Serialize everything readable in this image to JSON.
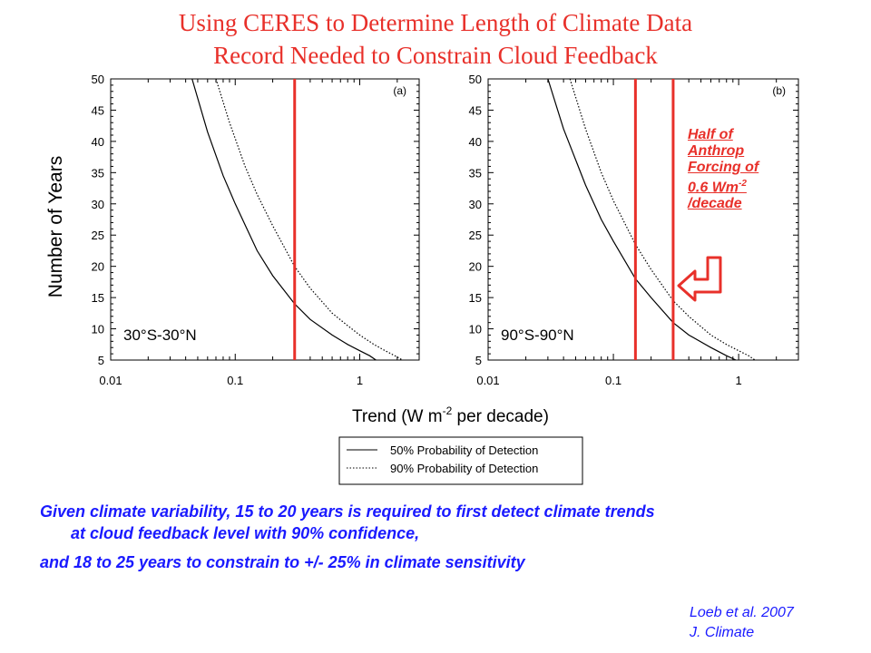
{
  "title": {
    "line1": "Using CERES to Determine Length of Climate Data",
    "line2": "Record Needed to Constrain Cloud Feedback"
  },
  "annotation": {
    "l1": "Half of",
    "l2": "Anthrop",
    "l3": "Forcing of",
    "l4a": "0.6 Wm",
    "l4sup": "-2",
    "l5": "/decade",
    "color": "#e8302a"
  },
  "summary": {
    "line1": "Given climate variability, 15 to 20 years is required to first detect climate trends",
    "line2": "at cloud feedback level with 90% confidence,",
    "line3": "and 18 to 25 years to constrain to +/- 25% in climate sensitivity",
    "color": "#1a1aff"
  },
  "citation": {
    "line1": "Loeb et al. 2007",
    "line2": "J. Climate"
  },
  "chart_data": {
    "type": "line",
    "ylabel": "Number of Years",
    "xlabel_main": "Trend (W m",
    "xlabel_sup": "-2",
    "xlabel_tail": " per decade)",
    "x_scale": "log",
    "xlim": [
      0.01,
      3
    ],
    "ylim": [
      5,
      50
    ],
    "x_ticks": [
      0.01,
      0.1,
      1
    ],
    "x_tick_labels": [
      "0.01",
      "0.1",
      "1"
    ],
    "y_ticks": [
      5,
      10,
      15,
      20,
      25,
      30,
      35,
      40,
      45,
      50
    ],
    "legend": {
      "placement": "bottom-center",
      "entries": [
        {
          "label": "50% Probability of Detection",
          "style": "solid"
        },
        {
          "label": "90% Probability of Detection",
          "style": "dotted"
        }
      ]
    },
    "panels": [
      {
        "id": "a",
        "panel_label": "(a)",
        "region_label": "30°S-30°N",
        "series": [
          {
            "name": "50% Probability of Detection",
            "style": "solid",
            "x": [
              0.045,
              0.06,
              0.08,
              0.1,
              0.15,
              0.2,
              0.3,
              0.4,
              0.6,
              0.8,
              1.0,
              1.2,
              1.35
            ],
            "y": [
              50,
              41.5,
              34.5,
              30,
              22.5,
              18.5,
              14,
              11.5,
              9,
              7.5,
              6.5,
              5.7,
              5
            ]
          },
          {
            "name": "90% Probability of Detection",
            "style": "dotted",
            "x": [
              0.07,
              0.09,
              0.12,
              0.15,
              0.2,
              0.3,
              0.4,
              0.6,
              0.8,
              1.0,
              1.3,
              1.6,
              2.0,
              2.2
            ],
            "y": [
              50,
              43,
              36,
              31.5,
              26.5,
              20,
              16.5,
              12.5,
              10.5,
              9,
              7.5,
              6.5,
              5.5,
              5
            ]
          }
        ],
        "vlines": [
          {
            "x": 0.3,
            "color": "#e8302a"
          }
        ]
      },
      {
        "id": "b",
        "panel_label": "(b)",
        "region_label": "90°S-90°N",
        "series": [
          {
            "name": "50% Probability of Detection",
            "style": "solid",
            "x": [
              0.03,
              0.04,
              0.06,
              0.08,
              0.1,
              0.15,
              0.2,
              0.3,
              0.4,
              0.6,
              0.8,
              0.95
            ],
            "y": [
              50,
              42,
              33,
              27.5,
              24,
              18,
              15,
              11,
              9,
              7,
              5.7,
              5
            ]
          },
          {
            "name": "90% Probability of Detection",
            "style": "dotted",
            "x": [
              0.045,
              0.06,
              0.08,
              0.1,
              0.15,
              0.2,
              0.3,
              0.4,
              0.6,
              0.8,
              1.0,
              1.2,
              1.35
            ],
            "y": [
              50,
              42,
              35,
              30.5,
              23.5,
              19.5,
              14.5,
              12,
              9,
              7.5,
              6.5,
              5.7,
              5
            ]
          }
        ],
        "vlines": [
          {
            "x": 0.15,
            "color": "#e8302a"
          },
          {
            "x": 0.3,
            "color": "#e8302a"
          }
        ]
      }
    ]
  }
}
